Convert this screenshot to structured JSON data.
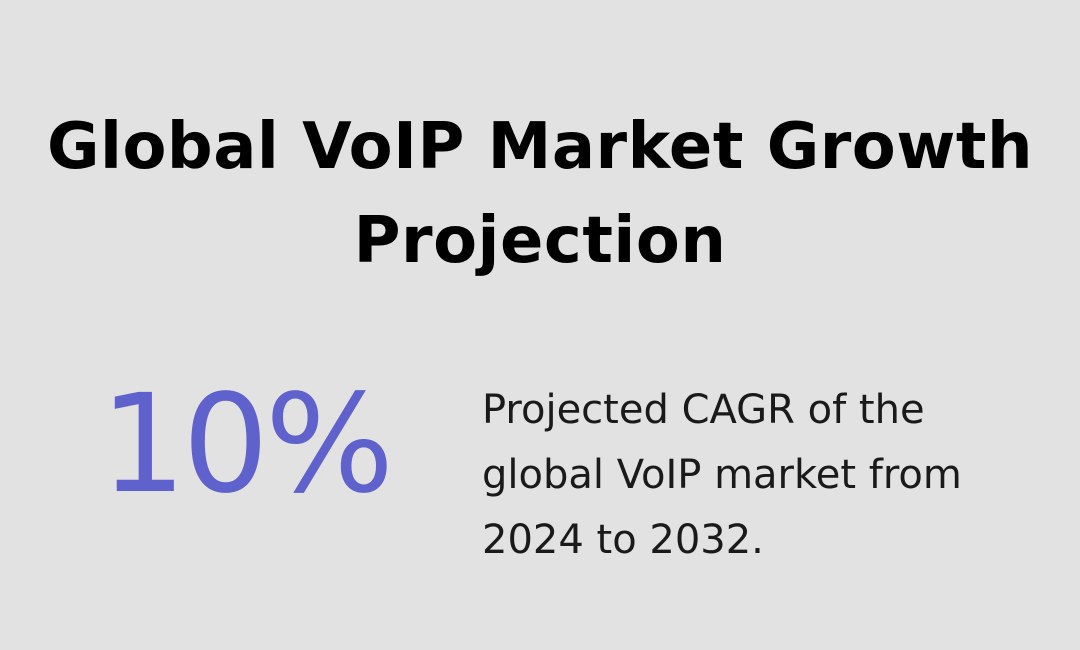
{
  "title": {
    "line1": "Global VoIP Market Growth",
    "line2": "Projection"
  },
  "stat": {
    "value": "10%",
    "description_lines": [
      "Projected CAGR of the",
      "global VoIP market from",
      "2024 to 2032."
    ]
  },
  "colors": {
    "background": "#e1e2e1",
    "accent": "#5f61cc",
    "title": "#000000",
    "text": "#1a1a1a"
  }
}
